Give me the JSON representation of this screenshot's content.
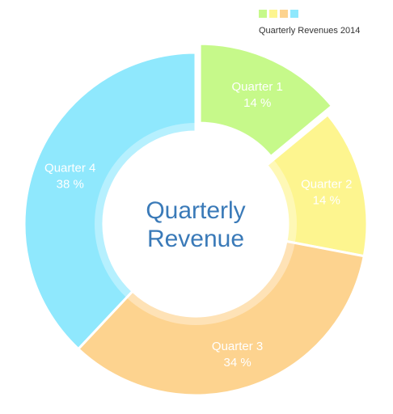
{
  "chart_data": {
    "type": "pie",
    "variant": "donut",
    "center_label": [
      "Quarterly",
      "Revenue"
    ],
    "legend": {
      "label": "Quarterly Revenues 2014",
      "placement": "top-right"
    },
    "slices": [
      {
        "name": "Quarter 1",
        "value": 14,
        "value_label": "14 %",
        "color": "#c6f98a",
        "exploded": true
      },
      {
        "name": "Quarter 2",
        "value": 14,
        "value_label": "14 %",
        "color": "#fdf58f",
        "exploded": false
      },
      {
        "name": "Quarter 3",
        "value": 34,
        "value_label": "34 %",
        "color": "#fdd38f",
        "exploded": false
      },
      {
        "name": "Quarter 4",
        "value": 38,
        "value_label": "38 %",
        "color": "#8fe8fd",
        "exploded": false
      }
    ]
  }
}
